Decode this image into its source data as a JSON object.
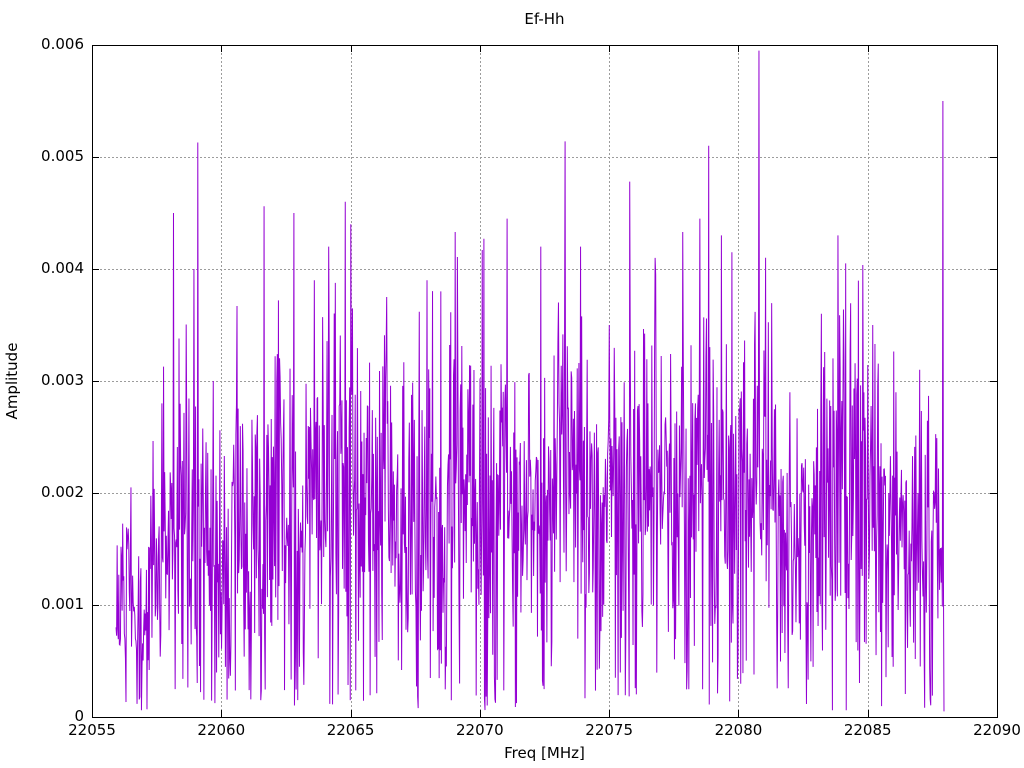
{
  "colors": {
    "series": "#9400d3",
    "grid": "#9c9c9c",
    "axis": "#000000",
    "background": "#ffffff"
  },
  "chart_data": {
    "type": "line",
    "title": "Ef-Hh",
    "xlabel": "Freq [MHz]",
    "ylabel": "Amplitude",
    "xlim": [
      22055,
      22090
    ],
    "ylim": [
      0,
      0.006
    ],
    "grid": true,
    "legend": "none",
    "xticks": [
      {
        "value": 22055,
        "label": "22055"
      },
      {
        "value": 22060,
        "label": "22060"
      },
      {
        "value": 22065,
        "label": "22065"
      },
      {
        "value": 22070,
        "label": "22070"
      },
      {
        "value": 22075,
        "label": "22075"
      },
      {
        "value": 22080,
        "label": "22080"
      },
      {
        "value": 22085,
        "label": "22085"
      },
      {
        "value": 22090,
        "label": "22090"
      }
    ],
    "yticks": [
      {
        "value": 0,
        "label": "0"
      },
      {
        "value": 0.001,
        "label": "0.001"
      },
      {
        "value": 0.002,
        "label": "0.002"
      },
      {
        "value": 0.003,
        "label": "0.003"
      },
      {
        "value": 0.004,
        "label": "0.004"
      },
      {
        "value": 0.005,
        "label": "0.005"
      },
      {
        "value": 0.006,
        "label": "0.006"
      }
    ],
    "series": [
      {
        "name": "Ef-Hh",
        "color": "#9400d3",
        "style": "noisy-line",
        "x_start": 22055.93,
        "x_end": 22087.95,
        "n_points": 1500,
        "seed": 20559,
        "noise_floor": 0.00012,
        "dip_probability": 0.05,
        "end_value": 5e-05,
        "envelope_hi": [
          [
            22055.93,
            0.0017
          ],
          [
            22056.4,
            0.0021
          ],
          [
            22057.0,
            0.0017
          ],
          [
            22057.6,
            0.0028
          ],
          [
            22058.1,
            0.0032
          ],
          [
            22058.6,
            0.0034
          ],
          [
            22059.2,
            0.0033
          ],
          [
            22059.8,
            0.0027
          ],
          [
            22060.4,
            0.0033
          ],
          [
            22061.0,
            0.003
          ],
          [
            22061.6,
            0.0035
          ],
          [
            22062.2,
            0.0036
          ],
          [
            22062.9,
            0.0033
          ],
          [
            22063.6,
            0.0035
          ],
          [
            22064.3,
            0.004
          ],
          [
            22065.0,
            0.0042
          ],
          [
            22065.6,
            0.0036
          ],
          [
            22066.3,
            0.0037
          ],
          [
            22067.0,
            0.0034
          ],
          [
            22067.6,
            0.0036
          ],
          [
            22068.3,
            0.0035
          ],
          [
            22069.0,
            0.0038
          ],
          [
            22069.7,
            0.0036
          ],
          [
            22070.4,
            0.004
          ],
          [
            22071.1,
            0.0037
          ],
          [
            22071.8,
            0.0035
          ],
          [
            22072.5,
            0.0038
          ],
          [
            22073.2,
            0.004
          ],
          [
            22073.9,
            0.0042
          ],
          [
            22074.6,
            0.0035
          ],
          [
            22075.3,
            0.0034
          ],
          [
            22076.0,
            0.0037
          ],
          [
            22076.7,
            0.0038
          ],
          [
            22077.4,
            0.0036
          ],
          [
            22078.1,
            0.0037
          ],
          [
            22078.8,
            0.0039
          ],
          [
            22079.5,
            0.0038
          ],
          [
            22080.2,
            0.004
          ],
          [
            22080.9,
            0.0038
          ],
          [
            22081.6,
            0.0035
          ],
          [
            22082.3,
            0.003
          ],
          [
            22083.0,
            0.0033
          ],
          [
            22083.7,
            0.0038
          ],
          [
            22084.4,
            0.0041
          ],
          [
            22085.1,
            0.0035
          ],
          [
            22085.8,
            0.0031
          ],
          [
            22086.5,
            0.0026
          ],
          [
            22087.2,
            0.003
          ],
          [
            22087.95,
            0.0028
          ]
        ],
        "peaks": [
          [
            22056.5,
            0.00205
          ],
          [
            22057.7,
            0.0028
          ],
          [
            22058.15,
            0.0045
          ],
          [
            22058.95,
            0.004
          ],
          [
            22059.1,
            0.00513
          ],
          [
            22060.6,
            0.00367
          ],
          [
            22061.65,
            0.00456
          ],
          [
            22062.2,
            0.00372
          ],
          [
            22062.8,
            0.0045
          ],
          [
            22063.6,
            0.0039
          ],
          [
            22064.15,
            0.0042
          ],
          [
            22064.8,
            0.0046
          ],
          [
            22065.0,
            0.0044
          ],
          [
            22066.4,
            0.00375
          ],
          [
            22067.95,
            0.0039
          ],
          [
            22068.5,
            0.0038
          ],
          [
            22069.05,
            0.00433
          ],
          [
            22070.1,
            0.00417
          ],
          [
            22071.05,
            0.00445
          ],
          [
            22072.35,
            0.0042
          ],
          [
            22073.3,
            0.00514
          ],
          [
            22073.9,
            0.0042
          ],
          [
            22075.0,
            0.0035
          ],
          [
            22075.8,
            0.00478
          ],
          [
            22076.8,
            0.00395
          ],
          [
            22077.85,
            0.00433
          ],
          [
            22078.5,
            0.00445
          ],
          [
            22078.85,
            0.0051
          ],
          [
            22079.35,
            0.0043
          ],
          [
            22079.75,
            0.00415
          ],
          [
            22080.8,
            0.00595
          ],
          [
            22081.05,
            0.0041
          ],
          [
            22082.0,
            0.0029
          ],
          [
            22083.2,
            0.0036
          ],
          [
            22083.85,
            0.0043
          ],
          [
            22084.15,
            0.00405
          ],
          [
            22085.2,
            0.0035
          ],
          [
            22086.1,
            0.0029
          ],
          [
            22087.0,
            0.0031
          ],
          [
            22087.9,
            0.0055
          ]
        ]
      }
    ]
  }
}
